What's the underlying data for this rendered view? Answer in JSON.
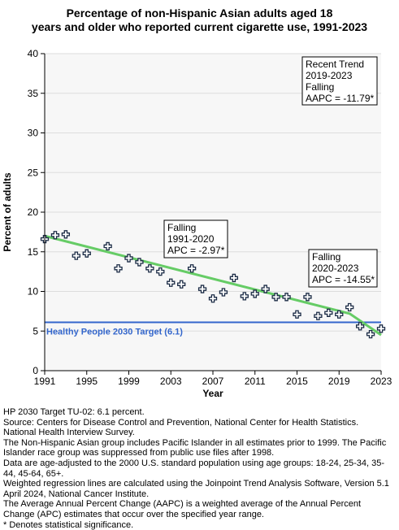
{
  "chart_data": {
    "type": "scatter",
    "title_lines": [
      "Percentage of non-Hispanic Asian adults aged 18",
      "years and older who reported current cigarette use, 1991-2023"
    ],
    "xlabel": "Year",
    "ylabel": "Percent of adults",
    "xlim": [
      1991,
      2023
    ],
    "ylim": [
      0,
      40
    ],
    "x_ticks": [
      1991,
      1995,
      1999,
      2003,
      2007,
      2011,
      2015,
      2019,
      2023
    ],
    "y_ticks": [
      0,
      5,
      10,
      15,
      20,
      25,
      30,
      35,
      40
    ],
    "grid": "horizontal",
    "points": {
      "x": [
        1991,
        1992,
        1993,
        1994,
        1995,
        1997,
        1998,
        1999,
        2000,
        2001,
        2002,
        2003,
        2004,
        2005,
        2006,
        2007,
        2008,
        2009,
        2010,
        2011,
        2012,
        2013,
        2014,
        2015,
        2016,
        2017,
        2018,
        2019,
        2020,
        2021,
        2022,
        2023
      ],
      "y": [
        16.6,
        17.1,
        17.2,
        14.5,
        14.8,
        15.7,
        12.9,
        14.2,
        13.7,
        12.9,
        12.5,
        11.1,
        10.9,
        12.9,
        10.3,
        9.1,
        9.9,
        11.7,
        9.4,
        9.7,
        10.3,
        9.3,
        9.3,
        7.1,
        9.3,
        6.9,
        7.3,
        7.1,
        8.0,
        5.6,
        4.6,
        5.3
      ]
    },
    "trend": {
      "x": [
        1991,
        2020,
        2023
      ],
      "y": [
        17.0,
        7.2,
        4.5
      ]
    },
    "target": {
      "value": 6.1,
      "label": "Healthy People 2030 Target (6.1)"
    },
    "annotations": [
      {
        "lines": [
          "Recent Trend",
          "2019-2023",
          "Falling",
          "AAPC = -11.79*"
        ]
      },
      {
        "lines": [
          "Falling",
          "1991-2020",
          "APC = -2.97*"
        ]
      },
      {
        "lines": [
          "Falling",
          "2020-2023",
          "APC = -14.55*"
        ]
      }
    ],
    "colors": {
      "points": "#1b2b45",
      "trend": "#66cc66",
      "target": "#3366cc",
      "plot_bg": "#f7f7f7",
      "grid": "#dddddd"
    }
  },
  "notes": [
    "HP 2030 Target TU-02: 6.1 percent.",
    "Source: Centers for Disease Control and Prevention, National Center for Health Statistics. National Health Interview Survey.",
    "The Non-Hispanic Asian group includes Pacific Islander in all estimates prior to 1999. The Pacific Islander race group was suppressed from public use files after 1998.",
    "Data are age-adjusted to the 2000 U.S. standard population using age groups: 18-24, 25-34, 35-44, 45-64, 65+.",
    "Weighted regression lines are calculated using the Joinpoint Trend Analysis Software, Version 5.1 April 2024, National Cancer Institute.",
    "The Average Annual Percent Change (AAPC) is a weighted average of the Annual Percent Change (APC) estimates that occur over the specified year range.",
    "* Denotes statistical significance."
  ]
}
